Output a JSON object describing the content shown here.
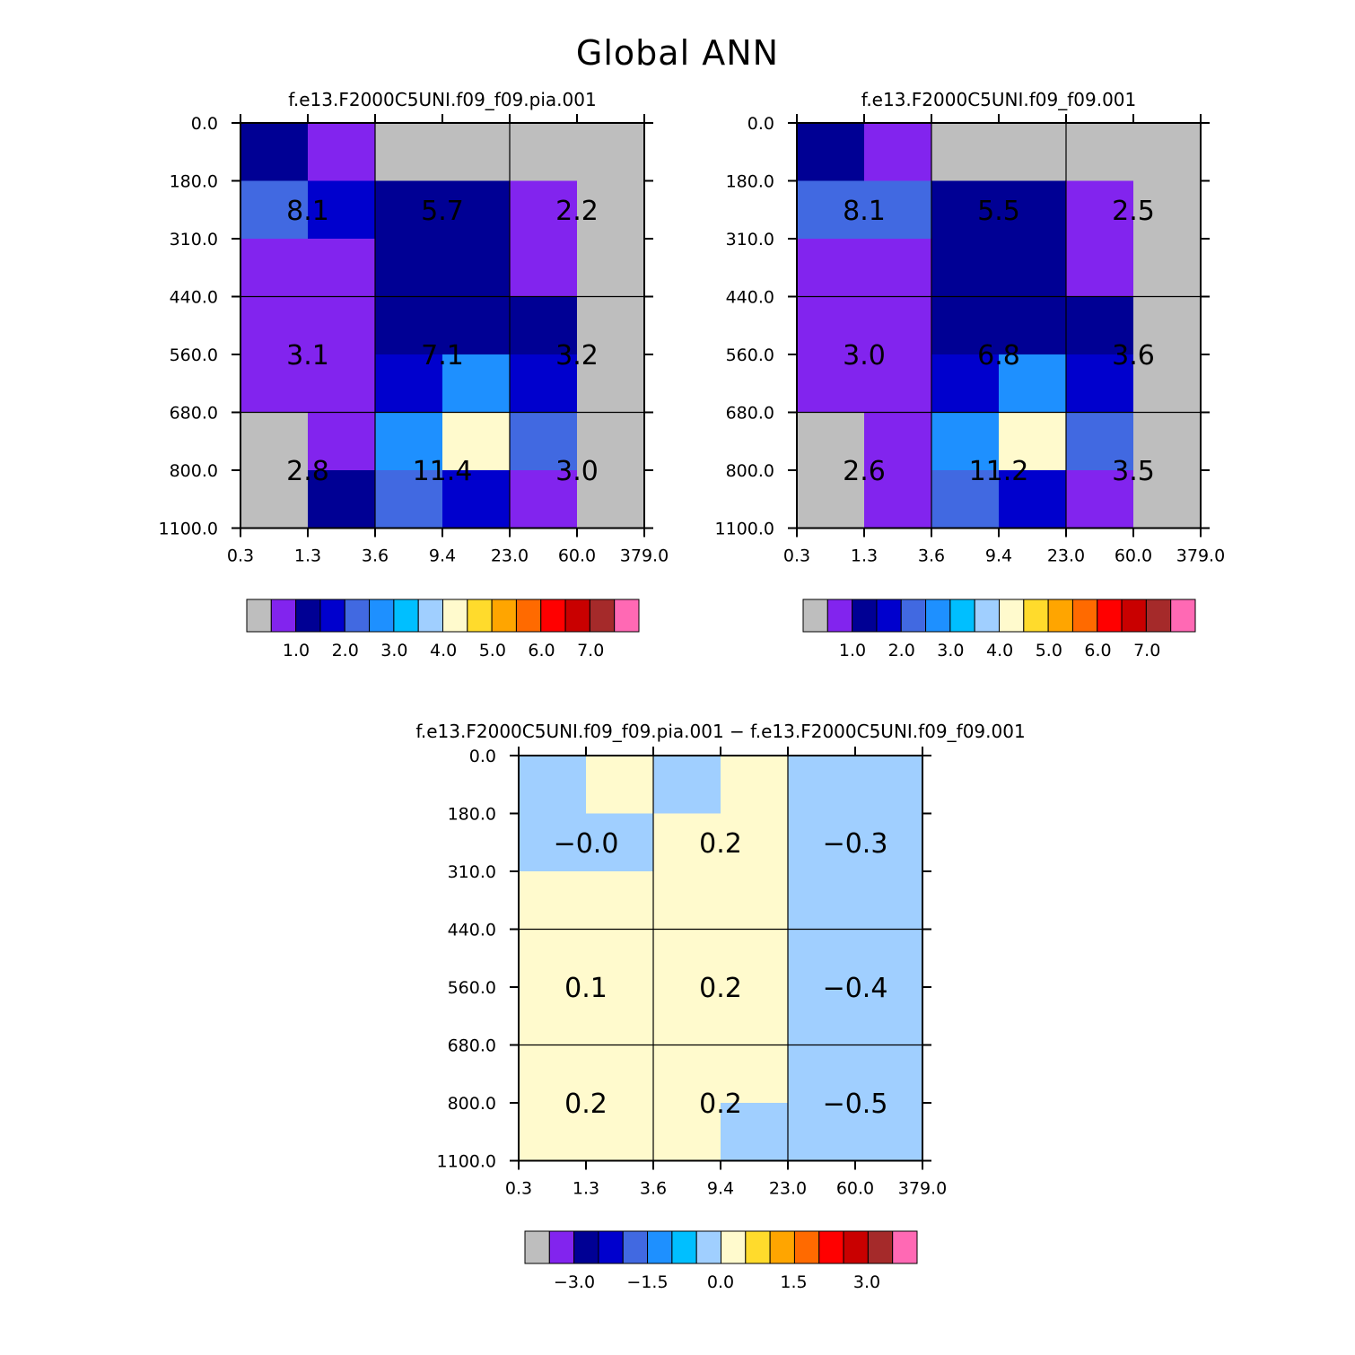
{
  "title": "Global ANN",
  "colors": {
    "palette": [
      "#bebebe",
      "#8224ee",
      "#000094",
      "#0000cd",
      "#4169e1",
      "#1e90ff",
      "#00bfff",
      "#a0cfff",
      "#fffacd",
      "#ffdb2c",
      "#ffa500",
      "#ff6a00",
      "#ff0000",
      "#c90000",
      "#a52a2a",
      "#ff69b4"
    ]
  },
  "chart_data": [
    {
      "type": "heatmap",
      "title": "f.e13.F2000C5UNI.f09_f09.pia.001",
      "x_ticks": [
        "0.3",
        "1.3",
        "3.6",
        "9.4",
        "23.0",
        "60.0",
        "379.0"
      ],
      "y_ticks": [
        "0.0",
        "180.0",
        "310.0",
        "440.0",
        "560.0",
        "680.0",
        "800.0",
        "1100.0"
      ],
      "cell_colors": [
        [
          2,
          1,
          0,
          0,
          0,
          0
        ],
        [
          4,
          3,
          2,
          2,
          1,
          0
        ],
        [
          1,
          1,
          2,
          2,
          1,
          0
        ],
        [
          1,
          1,
          2,
          2,
          2,
          0
        ],
        [
          1,
          1,
          3,
          5,
          3,
          0
        ],
        [
          0,
          1,
          5,
          8,
          4,
          0
        ],
        [
          0,
          2,
          4,
          3,
          1,
          0
        ]
      ],
      "labels": [
        [
          "8.1",
          "5.7",
          "2.2"
        ],
        [
          "3.1",
          "7.1",
          "3.2"
        ],
        [
          "2.8",
          "11.4",
          "3.0"
        ]
      ],
      "colorbar": {
        "labels": [
          "1.0",
          "2.0",
          "3.0",
          "4.0",
          "5.0",
          "6.0",
          "7.0"
        ]
      }
    },
    {
      "type": "heatmap",
      "title": "f.e13.F2000C5UNI.f09_f09.001",
      "x_ticks": [
        "0.3",
        "1.3",
        "3.6",
        "9.4",
        "23.0",
        "60.0",
        "379.0"
      ],
      "y_ticks": [
        "0.0",
        "180.0",
        "310.0",
        "440.0",
        "560.0",
        "680.0",
        "800.0",
        "1100.0"
      ],
      "cell_colors": [
        [
          2,
          1,
          0,
          0,
          0,
          0
        ],
        [
          4,
          4,
          2,
          2,
          1,
          0
        ],
        [
          1,
          1,
          2,
          2,
          1,
          0
        ],
        [
          1,
          1,
          2,
          2,
          2,
          0
        ],
        [
          1,
          1,
          3,
          5,
          3,
          0
        ],
        [
          0,
          1,
          5,
          8,
          4,
          0
        ],
        [
          0,
          1,
          4,
          3,
          1,
          0
        ]
      ],
      "labels": [
        [
          "8.1",
          "5.5",
          "2.5"
        ],
        [
          "3.0",
          "6.8",
          "3.6"
        ],
        [
          "2.6",
          "11.2",
          "3.5"
        ]
      ],
      "colorbar": {
        "labels": [
          "1.0",
          "2.0",
          "3.0",
          "4.0",
          "5.0",
          "6.0",
          "7.0"
        ]
      }
    },
    {
      "type": "heatmap",
      "title": "f.e13.F2000C5UNI.f09_f09.pia.001 − f.e13.F2000C5UNI.f09_f09.001",
      "x_ticks": [
        "0.3",
        "1.3",
        "3.6",
        "9.4",
        "23.0",
        "60.0",
        "379.0"
      ],
      "y_ticks": [
        "0.0",
        "180.0",
        "310.0",
        "440.0",
        "560.0",
        "680.0",
        "800.0",
        "1100.0"
      ],
      "cell_colors": [
        [
          7,
          8,
          7,
          8,
          7,
          7
        ],
        [
          7,
          7,
          8,
          8,
          7,
          7
        ],
        [
          8,
          8,
          8,
          8,
          7,
          7
        ],
        [
          8,
          8,
          8,
          8,
          7,
          7
        ],
        [
          8,
          8,
          8,
          8,
          7,
          7
        ],
        [
          8,
          8,
          8,
          8,
          7,
          7
        ],
        [
          8,
          8,
          8,
          7,
          7,
          7
        ]
      ],
      "labels": [
        [
          "−0.0",
          "0.2",
          "−0.3"
        ],
        [
          "0.1",
          "0.2",
          "−0.4"
        ],
        [
          "0.2",
          "0.2",
          "−0.5"
        ]
      ],
      "colorbar": {
        "labels": [
          "−3.0",
          "−1.5",
          "0.0",
          "1.5",
          "3.0"
        ]
      }
    }
  ]
}
